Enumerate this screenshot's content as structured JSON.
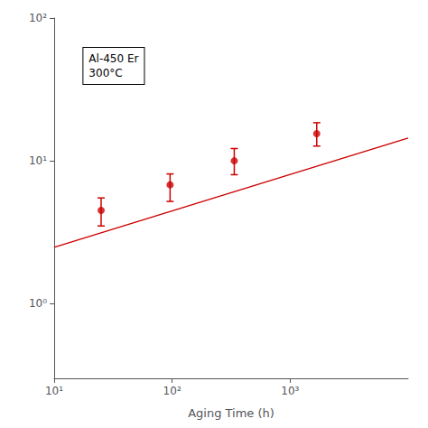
{
  "chart_data": {
    "type": "scatter",
    "log": true,
    "grid": false,
    "xlabel": "Aging Time (h)",
    "annotations": [
      "Al-450 Er",
      "300°C"
    ],
    "xlim": [
      10,
      10000
    ],
    "xticks": [
      {
        "value": 10,
        "label": "10¹"
      },
      {
        "value": 100,
        "label": "10²"
      },
      {
        "value": 1000,
        "label": "10³"
      }
    ],
    "ylim": [
      0.3,
      100
    ],
    "yticks": [
      {
        "value": 1,
        "label": "10⁰"
      },
      {
        "value": 10,
        "label": "10¹"
      },
      {
        "value": 100,
        "label": "10²"
      }
    ],
    "series": [
      {
        "type": "line",
        "color": "#cc0000",
        "line_style": "solid",
        "x": [
          10,
          10000
        ],
        "values": [
          2.482442,
          14.450374
        ]
      },
      {
        "type": "scatter",
        "color": "#cc0000",
        "marker": "circle",
        "x": [
          25,
          96,
          336,
          1680
        ],
        "values": [
          4.5,
          6.8,
          10.0,
          15.5
        ],
        "y_err_lower": [
          1.0,
          1.6,
          2.0,
          2.8
        ],
        "y_err_upper": [
          1.0,
          1.3,
          2.2,
          3.0
        ]
      }
    ]
  }
}
